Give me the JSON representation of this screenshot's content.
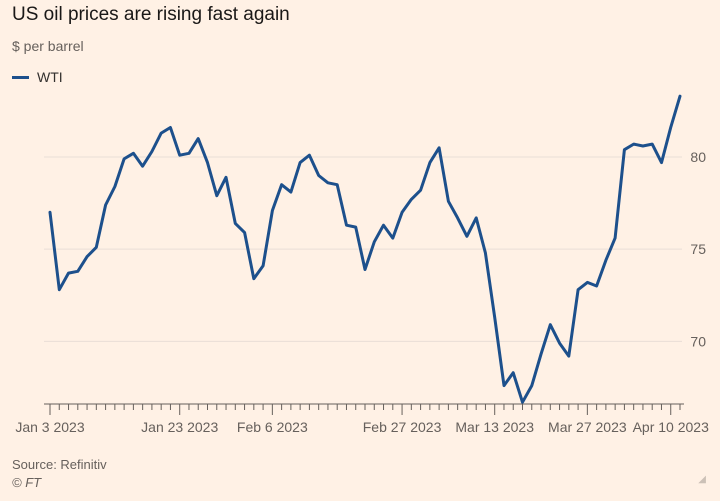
{
  "colors": {
    "background": "#fff1e5",
    "series": "#1d508c",
    "grid": "#e9ded6",
    "axis": "#66605c"
  },
  "chart_data": {
    "type": "line",
    "title": "US oil prices are rising fast again",
    "subtitle": "$ per barrel",
    "xlabel": "",
    "ylabel": "",
    "ylim": [
      66.6,
      83.8
    ],
    "yticks": [
      70,
      75,
      80
    ],
    "ytick_labels": [
      "70",
      "75",
      "80"
    ],
    "xtick_labels": [
      "Jan 3 2023",
      "Jan 23 2023",
      "Feb 6 2023",
      "Feb 27 2023",
      "Mar 13 2023",
      "Mar 27 2023",
      "Apr 10 2023"
    ],
    "xtick_label_index": [
      0,
      14,
      24,
      38,
      48,
      58,
      67
    ],
    "legend": [
      "WTI"
    ],
    "series": [
      {
        "name": "WTI",
        "values": [
          77.0,
          72.8,
          73.7,
          73.8,
          74.6,
          75.1,
          77.4,
          78.4,
          79.9,
          80.2,
          79.5,
          80.3,
          81.3,
          81.6,
          80.1,
          80.2,
          81.0,
          79.7,
          77.9,
          78.9,
          76.4,
          75.9,
          73.4,
          74.1,
          77.1,
          78.5,
          78.1,
          79.7,
          80.1,
          79.0,
          78.6,
          78.5,
          76.3,
          76.2,
          73.9,
          75.4,
          76.3,
          75.6,
          77.0,
          77.7,
          78.2,
          79.7,
          80.5,
          77.6,
          76.7,
          75.7,
          76.7,
          74.8,
          71.3,
          67.6,
          68.3,
          66.7,
          67.6,
          69.3,
          70.9,
          69.9,
          69.2,
          72.8,
          73.2,
          73.0,
          74.4,
          75.6,
          80.4,
          80.7,
          80.6,
          80.7,
          79.7,
          81.6,
          83.3
        ]
      }
    ]
  },
  "footer": {
    "source": "Source: Refinitiv",
    "copyright": "© FT"
  }
}
